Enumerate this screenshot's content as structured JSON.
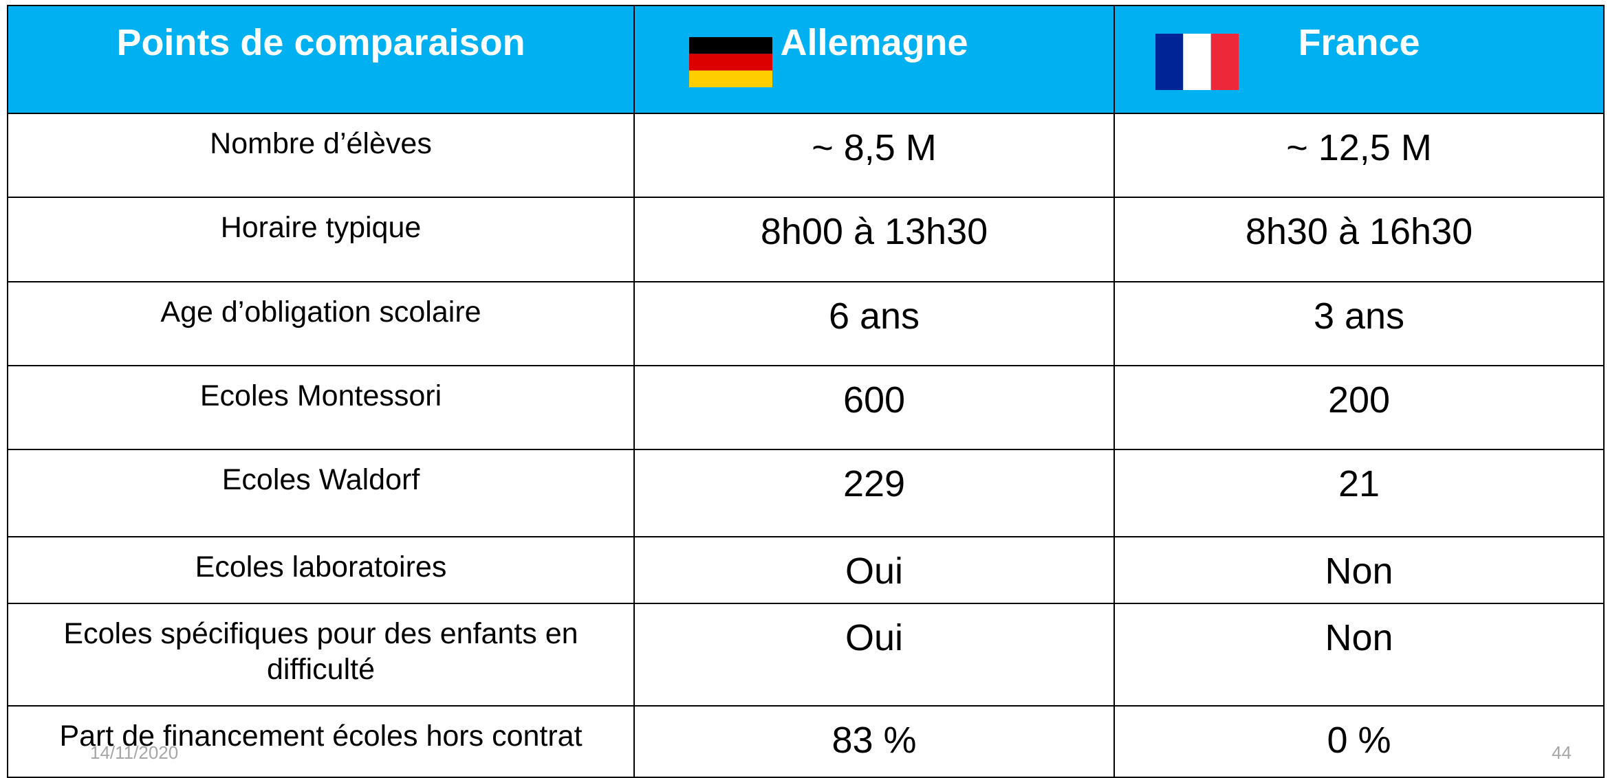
{
  "header": [
    "Points de comparaison",
    "Allemagne",
    "France"
  ],
  "rows": [
    [
      "Nombre d’élèves",
      "~ 8,5 M",
      "~ 12,5 M"
    ],
    [
      "Horaire typique",
      "8h00 à 13h30",
      "8h30 à 16h30"
    ],
    [
      "Age d’obligation scolaire",
      "6 ans",
      "3 ans"
    ],
    [
      "Ecoles Montessori",
      "600",
      "200"
    ],
    [
      "Ecoles Waldorf",
      "229",
      "21"
    ],
    [
      "Ecoles laboratoires",
      "Oui",
      "Non"
    ],
    [
      "Ecoles spécifiques pour des enfants en difficulté",
      "Oui",
      "Non"
    ],
    [
      "Part de financement écoles hors contrat",
      "83 %",
      "0 %"
    ]
  ],
  "footer": {
    "date": "14/11/2020",
    "page": "44"
  }
}
